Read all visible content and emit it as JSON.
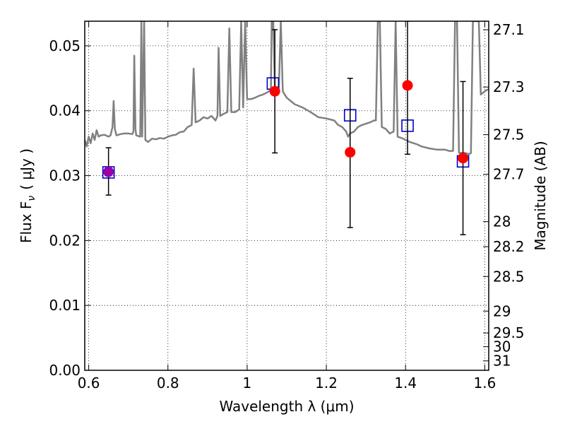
{
  "chart_data": {
    "type": "scatter",
    "xlabel": "Wavelength  λ (μm)",
    "ylabel": "Flux  F",
    "ylabel_sub": "ν",
    "ylabel_unit": "( μJy )",
    "y2label": "Magnitude (AB)",
    "xlim": [
      0.59,
      1.61
    ],
    "ylim": [
      0.0,
      0.0538
    ],
    "grid": true,
    "x_ticks": [
      {
        "value": 0.6,
        "label": "0.6"
      },
      {
        "value": 0.8,
        "label": "0.8"
      },
      {
        "value": 1.0,
        "label": "1"
      },
      {
        "value": 1.2,
        "label": "1.2"
      },
      {
        "value": 1.4,
        "label": "1.4"
      },
      {
        "value": 1.6,
        "label": "1.6"
      }
    ],
    "y_ticks": [
      {
        "value": 0.0,
        "label": "0.00"
      },
      {
        "value": 0.01,
        "label": "0.01"
      },
      {
        "value": 0.02,
        "label": "0.02"
      },
      {
        "value": 0.03,
        "label": "0.03"
      },
      {
        "value": 0.04,
        "label": "0.04"
      },
      {
        "value": 0.05,
        "label": "0.05"
      }
    ],
    "y2_ticks": [
      {
        "mag": 27.1,
        "label": "27.1"
      },
      {
        "mag": 27.3,
        "label": "27.3"
      },
      {
        "mag": 27.5,
        "label": "27.5"
      },
      {
        "mag": 27.7,
        "label": "27.7"
      },
      {
        "mag": 28.0,
        "label": "28"
      },
      {
        "mag": 28.2,
        "label": "28.2"
      },
      {
        "mag": 28.5,
        "label": "28.5"
      },
      {
        "mag": 29.0,
        "label": "29"
      },
      {
        "mag": 29.5,
        "label": "29.5"
      },
      {
        "mag": 30.0,
        "label": "30"
      },
      {
        "mag": 31.0,
        "label": "31"
      }
    ],
    "model_spectrum": {
      "color": "#808080",
      "points": [
        [
          0.59,
          0.0355
        ],
        [
          0.595,
          0.0345
        ],
        [
          0.6,
          0.036
        ],
        [
          0.605,
          0.035
        ],
        [
          0.61,
          0.0365
        ],
        [
          0.615,
          0.0355
        ],
        [
          0.62,
          0.037
        ],
        [
          0.625,
          0.036
        ],
        [
          0.63,
          0.0362
        ],
        [
          0.64,
          0.0363
        ],
        [
          0.65,
          0.036
        ],
        [
          0.655,
          0.0362
        ],
        [
          0.66,
          0.0375
        ],
        [
          0.663,
          0.0415
        ],
        [
          0.666,
          0.0372
        ],
        [
          0.67,
          0.0362
        ],
        [
          0.68,
          0.0364
        ],
        [
          0.69,
          0.0365
        ],
        [
          0.7,
          0.0365
        ],
        [
          0.71,
          0.0364
        ],
        [
          0.713,
          0.0368
        ],
        [
          0.715,
          0.0485
        ],
        [
          0.718,
          0.0372
        ],
        [
          0.72,
          0.0362
        ],
        [
          0.73,
          0.036
        ],
        [
          0.733,
          0.0538
        ],
        [
          0.735,
          0.036
        ],
        [
          0.74,
          0.0538
        ],
        [
          0.743,
          0.0355
        ],
        [
          0.75,
          0.0352
        ],
        [
          0.76,
          0.0357
        ],
        [
          0.77,
          0.0356
        ],
        [
          0.78,
          0.0358
        ],
        [
          0.79,
          0.0357
        ],
        [
          0.8,
          0.036
        ],
        [
          0.81,
          0.0362
        ],
        [
          0.82,
          0.0363
        ],
        [
          0.83,
          0.0367
        ],
        [
          0.84,
          0.0368
        ],
        [
          0.85,
          0.0375
        ],
        [
          0.86,
          0.0378
        ],
        [
          0.865,
          0.0465
        ],
        [
          0.87,
          0.0382
        ],
        [
          0.88,
          0.0385
        ],
        [
          0.89,
          0.039
        ],
        [
          0.9,
          0.0388
        ],
        [
          0.91,
          0.0392
        ],
        [
          0.92,
          0.0385
        ],
        [
          0.925,
          0.0392
        ],
        [
          0.928,
          0.0497
        ],
        [
          0.932,
          0.0392
        ],
        [
          0.94,
          0.0395
        ],
        [
          0.95,
          0.0398
        ],
        [
          0.955,
          0.0527
        ],
        [
          0.96,
          0.0398
        ],
        [
          0.97,
          0.0398
        ],
        [
          0.98,
          0.0402
        ],
        [
          0.985,
          0.0538
        ],
        [
          0.99,
          0.0405
        ],
        [
          0.995,
          0.0538
        ],
        [
          1.0,
          0.0418
        ],
        [
          1.01,
          0.0418
        ],
        [
          1.02,
          0.042
        ],
        [
          1.03,
          0.0423
        ],
        [
          1.04,
          0.0425
        ],
        [
          1.05,
          0.0428
        ],
        [
          1.06,
          0.0432
        ],
        [
          1.062,
          0.0538
        ],
        [
          1.066,
          0.0538
        ],
        [
          1.07,
          0.0435
        ],
        [
          1.08,
          0.0432
        ],
        [
          1.085,
          0.0538
        ],
        [
          1.09,
          0.043
        ],
        [
          1.1,
          0.042
        ],
        [
          1.12,
          0.041
        ],
        [
          1.14,
          0.0405
        ],
        [
          1.16,
          0.0398
        ],
        [
          1.18,
          0.039
        ],
        [
          1.2,
          0.0388
        ],
        [
          1.22,
          0.0385
        ],
        [
          1.23,
          0.0378
        ],
        [
          1.24,
          0.0375
        ],
        [
          1.25,
          0.0368
        ],
        [
          1.255,
          0.036
        ],
        [
          1.26,
          0.0365
        ],
        [
          1.27,
          0.0368
        ],
        [
          1.28,
          0.0375
        ],
        [
          1.29,
          0.0378
        ],
        [
          1.3,
          0.038
        ],
        [
          1.31,
          0.0382
        ],
        [
          1.32,
          0.0385
        ],
        [
          1.325,
          0.0385
        ],
        [
          1.33,
          0.0538
        ],
        [
          1.335,
          0.0538
        ],
        [
          1.34,
          0.0375
        ],
        [
          1.35,
          0.0372
        ],
        [
          1.36,
          0.0365
        ],
        [
          1.37,
          0.0368
        ],
        [
          1.375,
          0.0538
        ],
        [
          1.38,
          0.036
        ],
        [
          1.39,
          0.0358
        ],
        [
          1.4,
          0.0355
        ],
        [
          1.41,
          0.0352
        ],
        [
          1.42,
          0.035
        ],
        [
          1.43,
          0.0348
        ],
        [
          1.44,
          0.0345
        ],
        [
          1.46,
          0.0342
        ],
        [
          1.48,
          0.034
        ],
        [
          1.5,
          0.034
        ],
        [
          1.51,
          0.0338
        ],
        [
          1.52,
          0.0338
        ],
        [
          1.525,
          0.0538
        ],
        [
          1.53,
          0.0538
        ],
        [
          1.535,
          0.0335
        ],
        [
          1.54,
          0.0335
        ],
        [
          1.55,
          0.0335
        ],
        [
          1.56,
          0.0333
        ],
        [
          1.565,
          0.0335
        ],
        [
          1.57,
          0.0538
        ],
        [
          1.575,
          0.0538
        ],
        [
          1.58,
          0.0538
        ],
        [
          1.585,
          0.0538
        ],
        [
          1.59,
          0.0425
        ],
        [
          1.6,
          0.043
        ],
        [
          1.605,
          0.0432
        ],
        [
          1.61,
          0.0433
        ]
      ]
    },
    "model_photometry": {
      "marker": "square",
      "color": "#0000cc",
      "points": [
        {
          "x": 0.65,
          "y": 0.0305
        },
        {
          "x": 1.065,
          "y": 0.0442
        },
        {
          "x": 1.26,
          "y": 0.0393
        },
        {
          "x": 1.405,
          "y": 0.0377
        },
        {
          "x": 1.545,
          "y": 0.0322
        }
      ]
    },
    "observed": {
      "marker": "circle",
      "points": [
        {
          "x": 0.65,
          "y": 0.0306,
          "yerr_low": 0.0036,
          "yerr_high": 0.0037,
          "color": "#9900aa"
        },
        {
          "x": 1.07,
          "y": 0.043,
          "yerr_low": 0.0095,
          "yerr_high": 0.0095,
          "color": "#ff0000"
        },
        {
          "x": 1.26,
          "y": 0.0336,
          "yerr_low": 0.0116,
          "yerr_high": 0.0114,
          "color": "#ff0000"
        },
        {
          "x": 1.405,
          "y": 0.0439,
          "yerr_low": 0.0106,
          "yerr_high": 0.0099,
          "color": "#ff0000"
        },
        {
          "x": 1.545,
          "y": 0.0327,
          "yerr_low": 0.0118,
          "yerr_high": 0.0118,
          "color": "#ff0000"
        }
      ]
    }
  }
}
